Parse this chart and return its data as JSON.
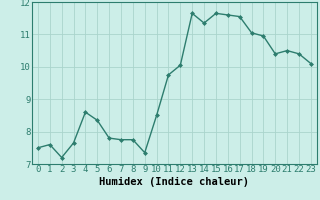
{
  "x": [
    0,
    1,
    2,
    3,
    4,
    5,
    6,
    7,
    8,
    9,
    10,
    11,
    12,
    13,
    14,
    15,
    16,
    17,
    18,
    19,
    20,
    21,
    22,
    23
  ],
  "y": [
    7.5,
    7.6,
    7.2,
    7.65,
    8.6,
    8.35,
    7.8,
    7.75,
    7.75,
    7.35,
    8.5,
    9.75,
    10.05,
    11.65,
    11.35,
    11.65,
    11.6,
    11.55,
    11.05,
    10.95,
    10.4,
    10.5,
    10.4,
    10.1
  ],
  "xlabel": "Humidex (Indice chaleur)",
  "line_color": "#2d7d6e",
  "bg_color": "#cceee8",
  "grid_color": "#aad4cc",
  "ylim": [
    7,
    12
  ],
  "xlim": [
    -0.5,
    23.5
  ],
  "yticks": [
    7,
    8,
    9,
    10,
    11,
    12
  ],
  "xticks": [
    0,
    1,
    2,
    3,
    4,
    5,
    6,
    7,
    8,
    9,
    10,
    11,
    12,
    13,
    14,
    15,
    16,
    17,
    18,
    19,
    20,
    21,
    22,
    23
  ],
  "marker": "D",
  "marker_size": 2.0,
  "line_width": 1.0,
  "xlabel_fontsize": 7.5,
  "tick_fontsize": 6.5,
  "spine_color": "#2d7d6e"
}
